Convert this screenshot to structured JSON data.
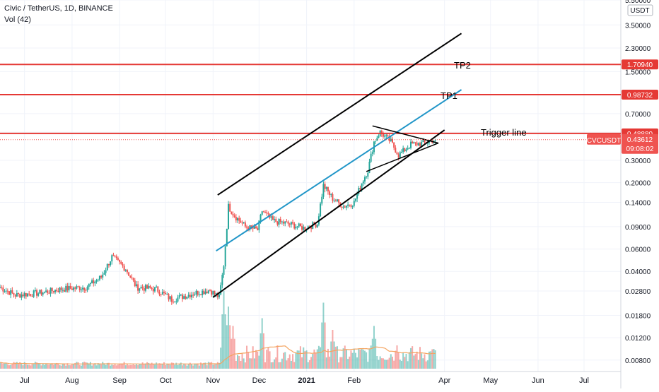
{
  "header": {
    "title": "Civic / TetherUS, 1D, BINANCE",
    "volume_label": "Vol (42)"
  },
  "price_axis": {
    "currency": "USDT",
    "top_partial": "5.50000"
  },
  "colors": {
    "up": "#26a69a",
    "down": "#ef5350",
    "level_line": "#e53935",
    "channel": "#000000",
    "midline": "#2196c8",
    "vol_ma": "#f4a460",
    "last_price_tag": "#ef5350",
    "grid": "#f0f3fa"
  },
  "annotations": {
    "tp2": "TP2",
    "tp1": "TP1",
    "trigger": "Trigger line"
  },
  "last_price": {
    "symbol": "CVCUSDT",
    "value": "0.43612",
    "countdown": "09:08:02"
  },
  "chart_data": {
    "type": "candlestick",
    "title": "Civic / TetherUS, 1D, BINANCE",
    "y_scale": "log",
    "ylim": [
      0.0065,
      5.5
    ],
    "xlim": [
      "2020-06-15",
      "2021-07-25"
    ],
    "y_ticks": [
      "5.50000",
      "3.50000",
      "2.30000",
      "1.50000",
      "0.70000",
      "0.50000",
      "0.30000",
      "0.20000",
      "0.14000",
      "0.09000",
      "0.06000",
      "0.04000",
      "0.02800",
      "0.01800",
      "0.01200",
      "0.00800"
    ],
    "x_ticks": [
      {
        "label": "Jul",
        "date": "2020-07-01"
      },
      {
        "label": "Aug",
        "date": "2020-08-01"
      },
      {
        "label": "Sep",
        "date": "2020-09-01"
      },
      {
        "label": "Oct",
        "date": "2020-10-01"
      },
      {
        "label": "Nov",
        "date": "2020-11-01"
      },
      {
        "label": "Dec",
        "date": "2020-12-01"
      },
      {
        "label": "2021",
        "date": "2021-01-01"
      },
      {
        "label": "Feb",
        "date": "2021-02-01"
      },
      {
        "label": "Apr",
        "date": "2021-04-01"
      },
      {
        "label": "May",
        "date": "2021-05-01"
      },
      {
        "label": "Jun",
        "date": "2021-06-01"
      },
      {
        "label": "Jul",
        "date": "2021-07-01"
      }
    ],
    "price_levels": [
      {
        "name": "TP2",
        "value": 1.7094,
        "label": "1.70940"
      },
      {
        "name": "TP1",
        "value": 0.98732,
        "label": "0.98732"
      },
      {
        "name": "Trigger line",
        "value": 0.4888,
        "label": "0.48880"
      }
    ],
    "anchors": [
      {
        "date": "2020-06-15",
        "close": 0.03
      },
      {
        "date": "2020-06-25",
        "close": 0.026
      },
      {
        "date": "2020-07-10",
        "close": 0.027
      },
      {
        "date": "2020-07-25",
        "close": 0.029
      },
      {
        "date": "2020-08-10",
        "close": 0.03
      },
      {
        "date": "2020-08-20",
        "close": 0.036
      },
      {
        "date": "2020-08-27",
        "close": 0.052
      },
      {
        "date": "2020-09-05",
        "close": 0.042
      },
      {
        "date": "2020-09-12",
        "close": 0.03
      },
      {
        "date": "2020-09-25",
        "close": 0.029
      },
      {
        "date": "2020-10-05",
        "close": 0.024
      },
      {
        "date": "2020-10-20",
        "close": 0.027
      },
      {
        "date": "2020-10-30",
        "close": 0.0285
      },
      {
        "date": "2020-11-05",
        "close": 0.025
      },
      {
        "date": "2020-11-08",
        "close": 0.045
      },
      {
        "date": "2020-11-11",
        "close": 0.13
      },
      {
        "date": "2020-11-15",
        "close": 0.11
      },
      {
        "date": "2020-11-22",
        "close": 0.09
      },
      {
        "date": "2020-11-30",
        "close": 0.085
      },
      {
        "date": "2020-12-03",
        "close": 0.12
      },
      {
        "date": "2020-12-10",
        "close": 0.1
      },
      {
        "date": "2020-12-20",
        "close": 0.095
      },
      {
        "date": "2020-12-30",
        "close": 0.088
      },
      {
        "date": "2021-01-08",
        "close": 0.095
      },
      {
        "date": "2021-01-12",
        "close": 0.19
      },
      {
        "date": "2021-01-18",
        "close": 0.15
      },
      {
        "date": "2021-01-25",
        "close": 0.13
      },
      {
        "date": "2021-02-01",
        "close": 0.14
      },
      {
        "date": "2021-02-06",
        "close": 0.2
      },
      {
        "date": "2021-02-10",
        "close": 0.25
      },
      {
        "date": "2021-02-14",
        "close": 0.42
      },
      {
        "date": "2021-02-18",
        "close": 0.5
      },
      {
        "date": "2021-02-25",
        "close": 0.42
      },
      {
        "date": "2021-03-02",
        "close": 0.33
      },
      {
        "date": "2021-03-10",
        "close": 0.4
      },
      {
        "date": "2021-03-18",
        "close": 0.41
      },
      {
        "date": "2021-03-26",
        "close": 0.4361
      }
    ],
    "volume_peaks": [
      {
        "date": "2020-11-08",
        "volume": 1.0
      },
      {
        "date": "2020-11-11",
        "volume": 0.8
      },
      {
        "date": "2020-11-14",
        "volume": 0.55
      },
      {
        "date": "2020-12-03",
        "volume": 0.65
      },
      {
        "date": "2021-01-12",
        "volume": 0.85
      },
      {
        "date": "2021-01-18",
        "volume": 0.5
      },
      {
        "date": "2021-02-14",
        "volume": 0.55
      },
      {
        "date": "2021-03-01",
        "volume": 0.3
      },
      {
        "date": "2021-03-24",
        "volume": 0.25
      }
    ],
    "trend_lines": [
      {
        "name": "channel-upper",
        "from": {
          "date": "2020-11-04",
          "price": 0.16
        },
        "to": {
          "date": "2021-04-12",
          "price": 3.0
        }
      },
      {
        "name": "channel-lower",
        "from": {
          "date": "2020-11-01",
          "price": 0.025
        },
        "to": {
          "date": "2021-04-01",
          "price": 0.52
        }
      },
      {
        "name": "channel-midline",
        "from": {
          "date": "2020-11-03",
          "price": 0.058
        },
        "to": {
          "date": "2021-04-12",
          "price": 1.08
        }
      },
      {
        "name": "triangle-top",
        "from": {
          "date": "2021-02-13",
          "price": 0.56
        },
        "to": {
          "date": "2021-03-28",
          "price": 0.41
        }
      },
      {
        "name": "triangle-bottom",
        "from": {
          "date": "2021-02-09",
          "price": 0.245
        },
        "to": {
          "date": "2021-03-28",
          "price": 0.41
        }
      }
    ]
  }
}
